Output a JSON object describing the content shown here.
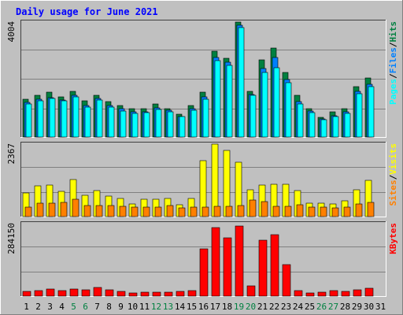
{
  "chart_data": {
    "type": "bar",
    "title": "Daily usage for June 2021",
    "categories": [
      "1",
      "2",
      "3",
      "4",
      "5",
      "6",
      "7",
      "8",
      "9",
      "10",
      "11",
      "12",
      "13",
      "14",
      "15",
      "16",
      "17",
      "18",
      "19",
      "20",
      "21",
      "22",
      "23",
      "24",
      "25",
      "26",
      "27",
      "28",
      "29",
      "30",
      "31"
    ],
    "weekend_days": [
      "5",
      "6",
      "12",
      "13",
      "19",
      "20",
      "26",
      "27"
    ],
    "panels": [
      {
        "y_label_parts": [
          "Pages",
          "Files",
          "Hits"
        ],
        "y_max_label": "4004",
        "y_max": 4004,
        "series": [
          {
            "name": "Hits",
            "color": "#008040",
            "values": [
              1330,
              1450,
              1570,
              1400,
              1580,
              1250,
              1460,
              1230,
              1100,
              990,
              1000,
              1150,
              1000,
              790,
              1100,
              1560,
              2980,
              2750,
              4000,
              1600,
              2700,
              3100,
              2250,
              1450,
              1000,
              690,
              880,
              1000,
              1750,
              2050,
              0
            ]
          },
          {
            "name": "Files",
            "color": "#0080ff",
            "values": [
              1200,
              1310,
              1380,
              1300,
              1450,
              1100,
              1350,
              1100,
              980,
              880,
              890,
              1020,
              920,
              720,
              980,
              1400,
              2780,
              2600,
              3900,
              1480,
              2380,
              2780,
              2000,
              1230,
              900,
              630,
              740,
              880,
              1600,
              1850,
              0
            ]
          },
          {
            "name": "Pages",
            "color": "#00ffff",
            "values": [
              1150,
              1270,
              1350,
              1250,
              1410,
              1050,
              1300,
              1050,
              900,
              830,
              850,
              950,
              870,
              700,
              920,
              1330,
              2650,
              2500,
              3800,
              1450,
              2250,
              2400,
              1900,
              1150,
              850,
              600,
              700,
              820,
              1500,
              1750,
              0
            ]
          }
        ]
      },
      {
        "y_label_parts": [
          "Sites",
          "Visits"
        ],
        "y_max_label": "2367",
        "y_max": 2367,
        "series": [
          {
            "name": "Visits",
            "color": "#ffff00",
            "values": [
              780,
              1010,
              1020,
              820,
              1200,
              700,
              840,
              660,
              600,
              400,
              560,
              560,
              600,
              380,
              600,
              1830,
              2360,
              2170,
              1780,
              880,
              1020,
              1060,
              1060,
              860,
              450,
              440,
              400,
              520,
              870,
              1190,
              0
            ]
          },
          {
            "name": "Sites",
            "color": "#ff8000",
            "values": [
              310,
              430,
              430,
              460,
              560,
              350,
              370,
              360,
              330,
              300,
              310,
              320,
              370,
              280,
              300,
              320,
              330,
              340,
              350,
              530,
              490,
              330,
              330,
              380,
              310,
              320,
              290,
              310,
              420,
              460,
              0
            ]
          }
        ]
      },
      {
        "y_label_parts": [
          "KBytes"
        ],
        "y_max_label": "284150",
        "y_max": 284150,
        "series": [
          {
            "name": "KBytes",
            "color": "#ff0000",
            "values": [
              20000,
              23000,
              28000,
              22000,
              28000,
              26000,
              33000,
              26000,
              19000,
              11000,
              15000,
              16000,
              14000,
              19000,
              22000,
              185000,
              270000,
              230000,
              275000,
              40000,
              220000,
              240000,
              125000,
              22000,
              13000,
              15000,
              21000,
              20000,
              26000,
              31000,
              0
            ]
          }
        ]
      }
    ]
  }
}
